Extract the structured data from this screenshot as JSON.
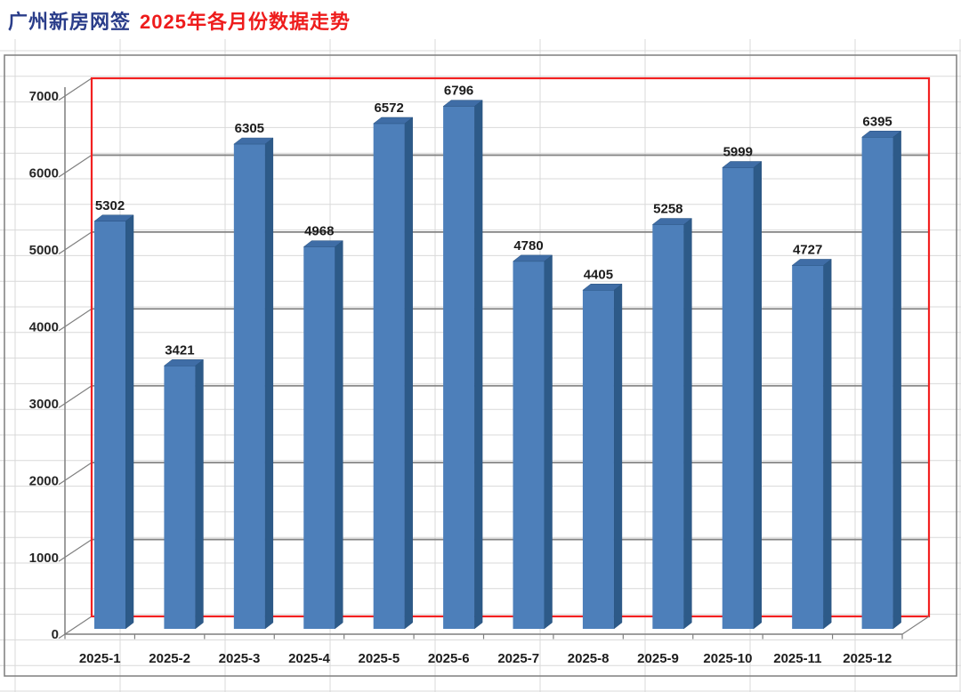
{
  "title": {
    "prefix": "广州新房网签",
    "highlight": "2025年各月份数据走势"
  },
  "colors": {
    "title_prefix": "#2a3d8a",
    "title_highlight": "#ee1c1c",
    "bar_front": "#4d7fba",
    "bar_top": "#3f6da6",
    "bar_side": "#2d5a88",
    "bar_edge": "#27507e",
    "plot_border": "#f22020",
    "major_gridline": "#848484",
    "axis_line": "#7f7f7f",
    "sheet_gridline": "#d9d9d9",
    "chart_border": "#7f7f7f",
    "value_label": "#1c1c1c",
    "tick_label": "#262626"
  },
  "chart_data": {
    "type": "bar",
    "style": "3d-column",
    "title": "广州新房网签 2025年各月份数据走势",
    "categories": [
      "2025-1",
      "2025-2",
      "2025-3",
      "2025-4",
      "2025-5",
      "2025-6",
      "2025-7",
      "2025-8",
      "2025-9",
      "2025-10",
      "2025-11",
      "2025-12"
    ],
    "values": [
      5302,
      3421,
      6305,
      4968,
      6572,
      6796,
      4780,
      4405,
      5258,
      5999,
      4727,
      6395
    ],
    "data_labels": [
      5302,
      3421,
      6305,
      4968,
      6572,
      6796,
      4780,
      4405,
      5258,
      5999,
      4727,
      6395
    ],
    "xlabel": "",
    "ylabel": "",
    "ylim": [
      0,
      7000
    ],
    "yticks": [
      0,
      1000,
      2000,
      3000,
      4000,
      5000,
      6000,
      7000
    ],
    "grid": true,
    "legend": false
  }
}
